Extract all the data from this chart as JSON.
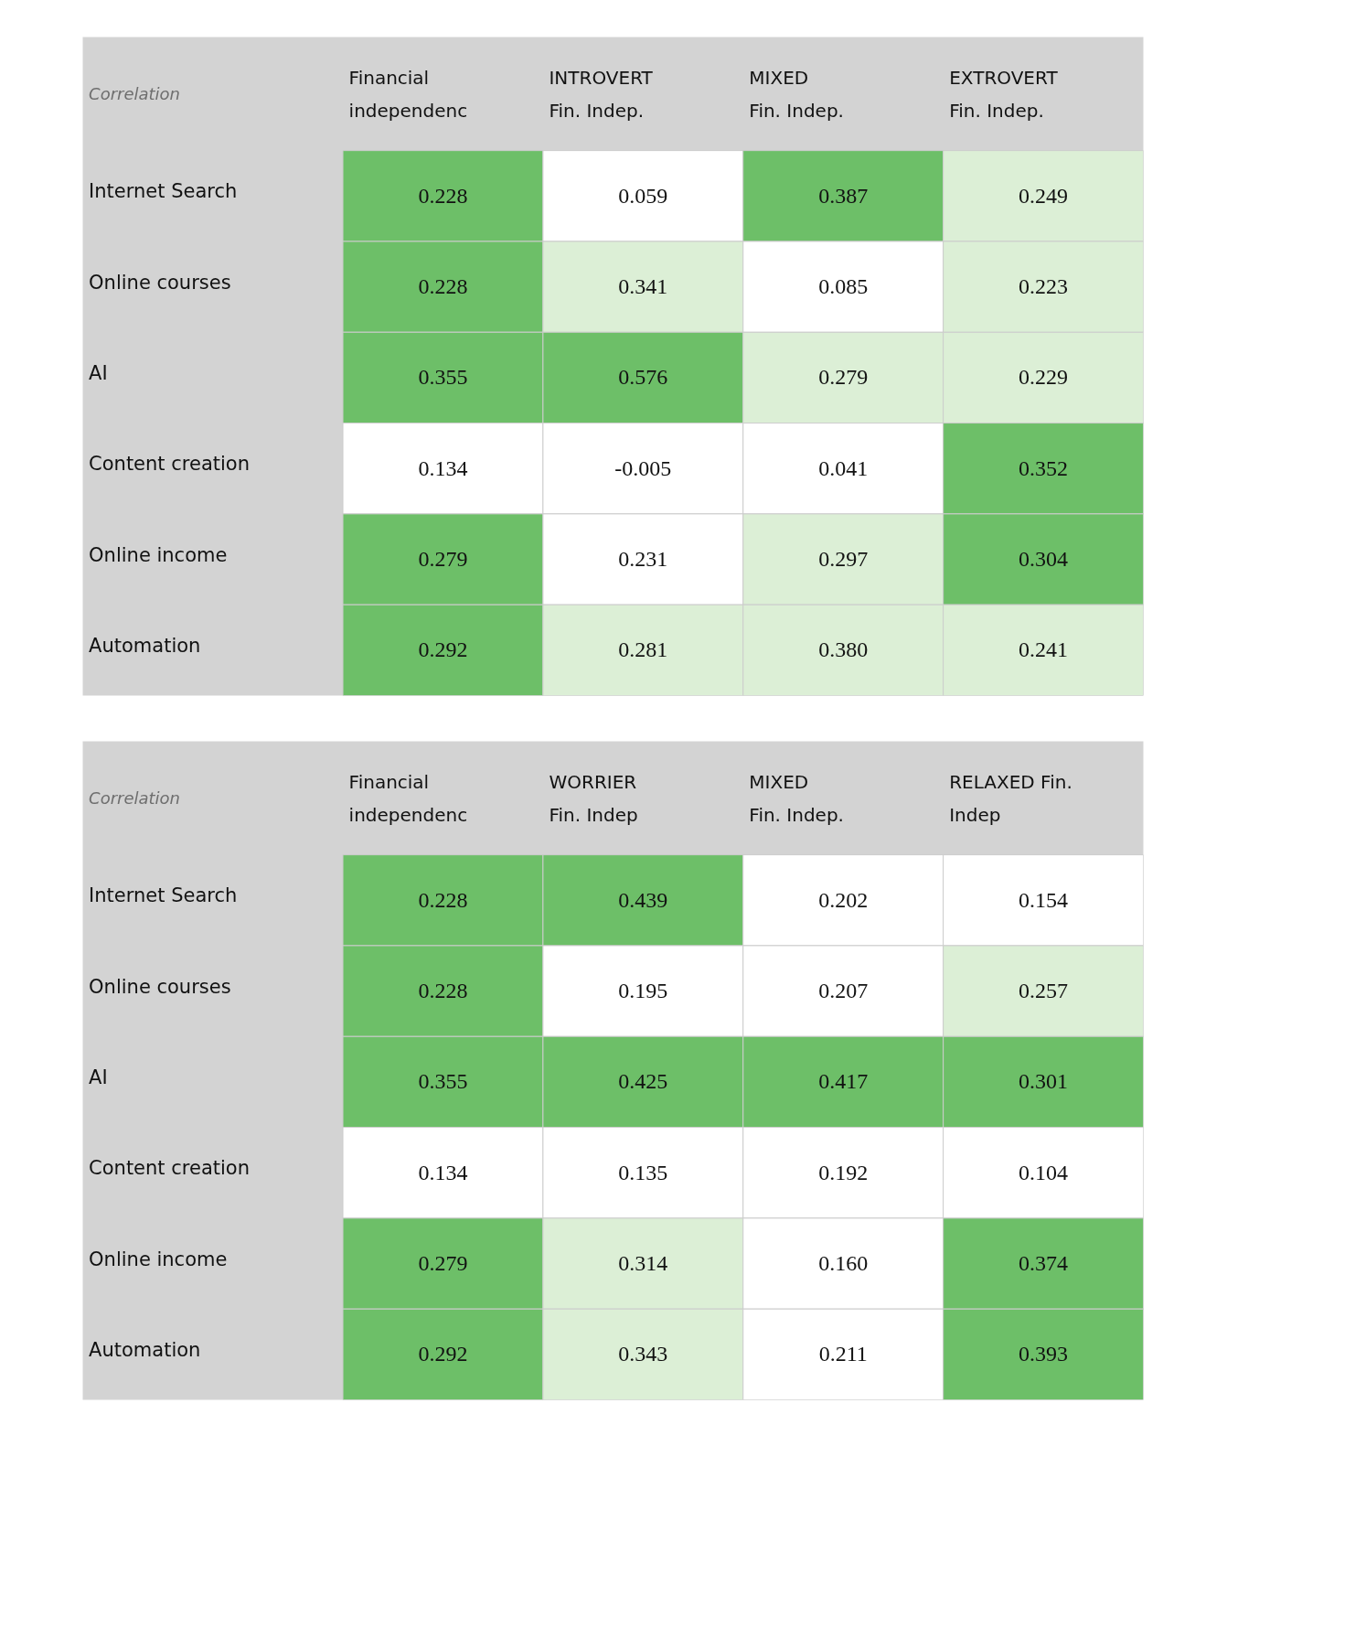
{
  "chart_data": [
    {
      "type": "heatmap",
      "annotations": [
        "Correlation"
      ],
      "categories": [
        "Financial\nindependenc",
        "INTROVERT\nFin. Indep.",
        "MIXED\nFin. Indep.",
        "EXTROVERT\nFin. Indep."
      ],
      "y_categories": [
        "Internet Search",
        "Online courses",
        "AI",
        "Content creation",
        "Online income",
        "Automation"
      ],
      "cells": [
        [
          0.228,
          0.059,
          0.387,
          0.249
        ],
        [
          0.228,
          0.341,
          0.085,
          0.223
        ],
        [
          0.355,
          0.576,
          0.279,
          0.229
        ],
        [
          0.134,
          -0.005,
          0.041,
          0.352
        ],
        [
          0.279,
          0.231,
          0.297,
          0.304
        ],
        [
          0.292,
          0.281,
          0.38,
          0.241
        ]
      ],
      "cell_labels": [
        [
          "0.228",
          "0.059",
          "0.387",
          "0.249"
        ],
        [
          "0.228",
          "0.341",
          "0.085",
          "0.223"
        ],
        [
          "0.355",
          "0.576",
          "0.279",
          "0.229"
        ],
        [
          "0.134",
          "-0.005",
          "0.041",
          "0.352"
        ],
        [
          "0.279",
          "0.231",
          "0.297",
          "0.304"
        ],
        [
          "0.292",
          "0.281",
          "0.380",
          "0.241"
        ]
      ],
      "colors": [
        [
          "#6dbf68",
          "#ffffff",
          "#6dbf68",
          "#dcefd6"
        ],
        [
          "#6dbf68",
          "#dcefd6",
          "#ffffff",
          "#dcefd6"
        ],
        [
          "#6dbf68",
          "#6dbf68",
          "#dcefd6",
          "#dcefd6"
        ],
        [
          "#ffffff",
          "#ffffff",
          "#ffffff",
          "#6dbf68"
        ],
        [
          "#6dbf68",
          "#ffffff",
          "#dcefd6",
          "#6dbf68"
        ],
        [
          "#6dbf68",
          "#dcefd6",
          "#dcefd6",
          "#dcefd6"
        ]
      ]
    },
    {
      "type": "heatmap",
      "annotations": [
        "Correlation"
      ],
      "categories": [
        "Financial\nindependenc",
        "WORRIER\nFin. Indep",
        "MIXED\nFin. Indep.",
        "RELAXED Fin.\nIndep"
      ],
      "y_categories": [
        "Internet Search",
        "Online courses",
        "AI",
        "Content creation",
        "Online income",
        "Automation"
      ],
      "cells": [
        [
          0.228,
          0.439,
          0.202,
          0.154
        ],
        [
          0.228,
          0.195,
          0.207,
          0.257
        ],
        [
          0.355,
          0.425,
          0.417,
          0.301
        ],
        [
          0.134,
          0.135,
          0.192,
          0.104
        ],
        [
          0.279,
          0.314,
          0.16,
          0.374
        ],
        [
          0.292,
          0.343,
          0.211,
          0.393
        ]
      ],
      "cell_labels": [
        [
          "0.228",
          "0.439",
          "0.202",
          "0.154"
        ],
        [
          "0.228",
          "0.195",
          "0.207",
          "0.257"
        ],
        [
          "0.355",
          "0.425",
          "0.417",
          "0.301"
        ],
        [
          "0.134",
          "0.135",
          "0.192",
          "0.104"
        ],
        [
          "0.279",
          "0.314",
          "0.160",
          "0.374"
        ],
        [
          "0.292",
          "0.343",
          "0.211",
          "0.393"
        ]
      ],
      "colors": [
        [
          "#6dbf68",
          "#6dbf68",
          "#ffffff",
          "#ffffff"
        ],
        [
          "#6dbf68",
          "#ffffff",
          "#ffffff",
          "#dcefd6"
        ],
        [
          "#6dbf68",
          "#6dbf68",
          "#6dbf68",
          "#6dbf68"
        ],
        [
          "#ffffff",
          "#ffffff",
          "#ffffff",
          "#ffffff"
        ],
        [
          "#6dbf68",
          "#dcefd6",
          "#ffffff",
          "#6dbf68"
        ],
        [
          "#6dbf68",
          "#dcefd6",
          "#ffffff",
          "#6dbf68"
        ]
      ]
    }
  ]
}
